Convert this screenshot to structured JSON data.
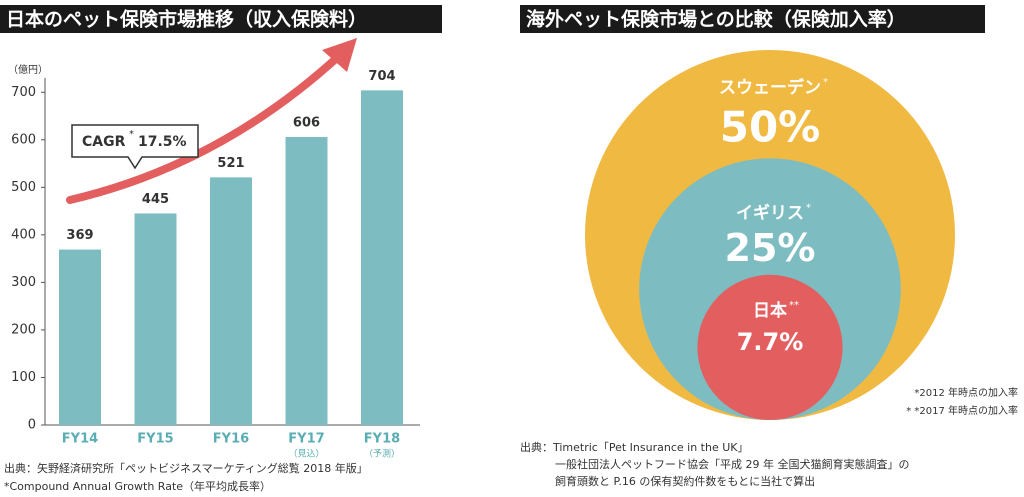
{
  "chart_data": [
    {
      "type": "bar",
      "title": "日本のペット保険市場推移（収入保険料）",
      "y_unit": "（億円）",
      "categories": [
        "FY14",
        "FY15",
        "FY16",
        "FY17",
        "FY18"
      ],
      "category_notes": [
        null,
        null,
        null,
        "（見込）",
        "（予測）"
      ],
      "values": [
        369,
        445,
        521,
        606,
        704
      ],
      "color": "#7dbdc1",
      "category_color": "#5aaeb3",
      "ylim": [
        0,
        730
      ],
      "yticks": [
        0,
        100,
        200,
        300,
        400,
        500,
        600,
        700
      ],
      "annotation": {
        "label": "CAGR",
        "marker": "*",
        "value": "17.5%"
      },
      "notes": [
        "出典：矢野経済研究所「ペットビジネスマーケティング総覧 2018 年版」",
        "*Compound Annual Growth Rate（年平均成長率）"
      ]
    },
    {
      "type": "bubble",
      "title": "海外ペット保険市場との比較（保険加入率）",
      "categories": [
        "スウェーデン",
        "イギリス",
        "日本"
      ],
      "markers": [
        "*",
        "*",
        "**"
      ],
      "values": [
        50,
        25,
        7.7
      ],
      "value_labels": [
        "50%",
        "25%",
        "7.7%"
      ],
      "colors": [
        "#f0b942",
        "#7dbdc1",
        "#e35f5f"
      ],
      "footnotes": [
        "*2012 年時点の加入率",
        "* *2017 年時点の加入率"
      ],
      "notes": [
        "出典：Timetric「Pet Insurance in the UK」",
        "一般社団法人ペットフード協会「平成 29 年 全国犬猫飼育実態調査」の",
        "飼育頭数と P.16 の保有契約件数をもとに当社で算出"
      ]
    }
  ]
}
